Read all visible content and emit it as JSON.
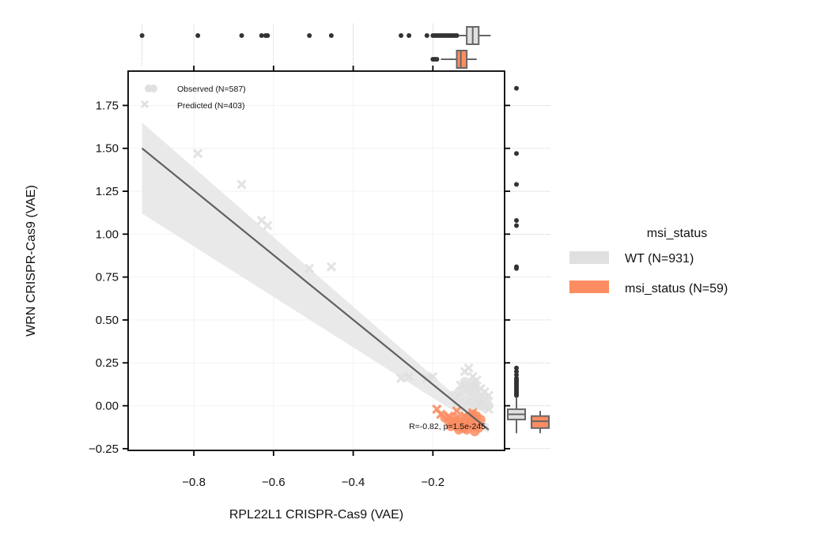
{
  "chart_data": {
    "type": "scatter",
    "xlabel": "RPL22L1 CRISPR-Cas9 (VAE)",
    "ylabel": "WRN CRISPR-Cas9 (VAE)",
    "xlim": [
      -0.965,
      -0.02
    ],
    "ylim": [
      -0.26,
      1.95
    ],
    "x_ticks": [
      -0.8,
      -0.6,
      -0.4,
      -0.2
    ],
    "x_tick_labels": [
      "−0.8",
      "−0.6",
      "−0.4",
      "−0.2"
    ],
    "y_ticks": [
      -0.25,
      0.0,
      0.25,
      0.5,
      0.75,
      1.0,
      1.25,
      1.5,
      1.75
    ],
    "y_tick_labels": [
      "−0.25",
      "0.00",
      "0.25",
      "0.50",
      "0.75",
      "1.00",
      "1.25",
      "1.50",
      "1.75"
    ],
    "marker_legend": {
      "observed": "Observed (N=587)",
      "predicted": "Predicted (N=403)"
    },
    "hue_legend": {
      "title": "msi_status",
      "items": [
        {
          "label": "WT (N=931)",
          "color": "#e0e0e0"
        },
        {
          "label": "msi_status (N=59)",
          "color": "#fc8d62"
        }
      ]
    },
    "annotation": "R=-0.82, p=1.5e-245",
    "regression": {
      "line": [
        [
          -0.93,
          1.5
        ],
        [
          -0.06,
          -0.14
        ]
      ],
      "ci_band": {
        "x": [
          -0.93,
          -0.06
        ],
        "upper": [
          1.65,
          -0.11
        ],
        "lower": [
          1.12,
          -0.16
        ]
      },
      "color": "#606060",
      "band_color": "#e8e8e8"
    },
    "series": [
      {
        "name": "WT (N=931)",
        "color": "#e0e0e0",
        "predicted_points": [
          [
            -0.79,
            1.47
          ],
          [
            -0.68,
            1.29
          ],
          [
            -0.63,
            1.08
          ],
          [
            -0.615,
            1.05
          ],
          [
            -0.51,
            0.8
          ],
          [
            -0.455,
            0.81
          ],
          [
            -0.28,
            0.16
          ],
          [
            -0.26,
            0.17
          ],
          [
            -0.215,
            0.16
          ],
          [
            -0.2,
            0.17
          ],
          [
            -0.12,
            0.2
          ],
          [
            -0.11,
            0.22
          ],
          [
            -0.1,
            0.17
          ],
          [
            -0.09,
            0.15
          ],
          [
            -0.13,
            0.12
          ],
          [
            -0.08,
            0.1
          ],
          [
            -0.07,
            0.08
          ],
          [
            -0.06,
            0.06
          ],
          [
            -0.075,
            0.02
          ],
          [
            -0.06,
            -0.02
          ]
        ],
        "observed_points": [
          [
            -0.12,
            0.1
          ],
          [
            -0.11,
            0.08
          ],
          [
            -0.1,
            0.06
          ],
          [
            -0.095,
            0.09
          ],
          [
            -0.085,
            0.04
          ],
          [
            -0.13,
            0.05
          ],
          [
            -0.115,
            0.03
          ],
          [
            -0.105,
            0.02
          ],
          [
            -0.09,
            0.01
          ],
          [
            -0.08,
            0.0
          ],
          [
            -0.07,
            -0.01
          ],
          [
            -0.14,
            0.02
          ],
          [
            -0.125,
            0.0
          ],
          [
            -0.1,
            -0.01
          ],
          [
            -0.11,
            0.11
          ],
          [
            -0.1,
            0.13
          ],
          [
            -0.09,
            0.07
          ],
          [
            -0.075,
            0.05
          ],
          [
            -0.065,
            0.03
          ],
          [
            -0.06,
            0.0
          ],
          [
            -0.15,
            0.06
          ],
          [
            -0.135,
            0.08
          ],
          [
            -0.12,
            0.14
          ],
          [
            -0.095,
            0.12
          ]
        ]
      },
      {
        "name": "msi_status (N=59)",
        "color": "#fc8d62",
        "predicted_points": [
          [
            -0.19,
            -0.02
          ],
          [
            -0.18,
            -0.05
          ],
          [
            -0.16,
            -0.06
          ],
          [
            -0.14,
            -0.03
          ],
          [
            -0.12,
            -0.06
          ],
          [
            -0.1,
            -0.04
          ],
          [
            -0.095,
            -0.07
          ]
        ],
        "observed_points": [
          [
            -0.17,
            -0.07
          ],
          [
            -0.16,
            -0.09
          ],
          [
            -0.15,
            -0.1
          ],
          [
            -0.14,
            -0.12
          ],
          [
            -0.13,
            -0.08
          ],
          [
            -0.125,
            -0.13
          ],
          [
            -0.12,
            -0.1
          ],
          [
            -0.115,
            -0.14
          ],
          [
            -0.11,
            -0.11
          ],
          [
            -0.105,
            -0.09
          ],
          [
            -0.1,
            -0.12
          ],
          [
            -0.095,
            -0.15
          ],
          [
            -0.09,
            -0.1
          ],
          [
            -0.085,
            -0.13
          ],
          [
            -0.08,
            -0.08
          ],
          [
            -0.135,
            -0.14
          ],
          [
            -0.145,
            -0.07
          ],
          [
            -0.155,
            -0.12
          ],
          [
            -0.11,
            -0.06
          ],
          [
            -0.1,
            -0.05
          ],
          [
            -0.13,
            -0.11
          ],
          [
            -0.12,
            -0.13
          ],
          [
            -0.09,
            -0.06
          ],
          [
            -0.14,
            -0.09
          ]
        ]
      }
    ],
    "top_marginal": {
      "wt_outliers_x": [
        -0.93,
        -0.79,
        -0.68,
        -0.63,
        -0.62,
        -0.615,
        -0.51,
        -0.455,
        -0.28,
        -0.26,
        -0.215,
        -0.2,
        -0.195,
        -0.19,
        -0.185,
        -0.18,
        -0.175,
        -0.17,
        -0.165,
        -0.16,
        -0.155,
        -0.15,
        -0.145,
        -0.14
      ],
      "wt_box": {
        "whisker_low": -0.135,
        "q1": -0.115,
        "median": -0.1,
        "q3": -0.085,
        "whisker_high": -0.055
      },
      "msi_outliers_x": [
        -0.2,
        -0.195,
        -0.19
      ],
      "msi_box": {
        "whisker_low": -0.18,
        "q1": -0.14,
        "median": -0.13,
        "q3": -0.115,
        "whisker_high": -0.09
      }
    },
    "right_marginal": {
      "wt_outliers_y": [
        1.85,
        1.47,
        1.29,
        1.08,
        1.05,
        0.81,
        0.8,
        0.22,
        0.2,
        0.18,
        0.16,
        0.15,
        0.14,
        0.13,
        0.12,
        0.11,
        0.1,
        0.09,
        0.08,
        0.07,
        0.06
      ],
      "wt_box": {
        "whisker_low": -0.16,
        "q1": -0.08,
        "median": -0.05,
        "q3": -0.02,
        "whisker_high": 0.05
      },
      "msi_box": {
        "whisker_low": -0.16,
        "q1": -0.13,
        "median": -0.09,
        "q3": -0.06,
        "whisker_high": -0.03
      }
    }
  }
}
